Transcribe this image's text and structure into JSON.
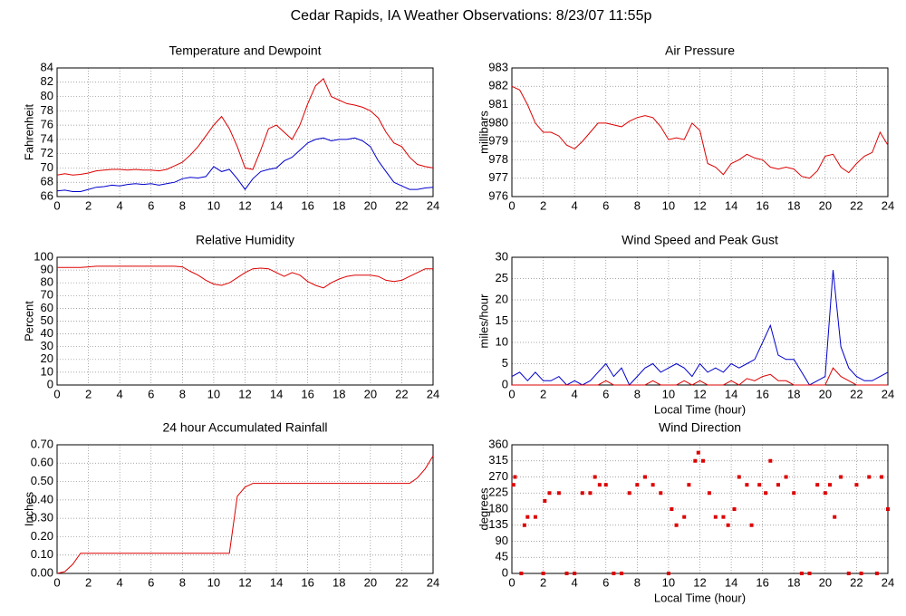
{
  "title": "Cedar Rapids, IA Weather Observations: 8/23/07 11:55p",
  "chart_data": [
    {
      "type": "line",
      "title": "Temperature and Dewpoint",
      "ylabel": "Fahrenheit",
      "x": [
        0,
        0.5,
        1,
        1.5,
        2,
        2.5,
        3,
        3.5,
        4,
        4.5,
        5,
        5.5,
        6,
        6.5,
        7,
        7.5,
        8,
        8.5,
        9,
        9.5,
        10,
        10.5,
        11,
        11.5,
        12,
        12.5,
        13,
        13.5,
        14,
        14.5,
        15,
        15.5,
        16,
        16.5,
        17,
        17.5,
        18,
        18.5,
        19,
        19.5,
        20,
        20.5,
        21,
        21.5,
        22,
        22.5,
        23,
        23.5,
        24
      ],
      "series": [
        {
          "color": "#dd0000",
          "values": [
            69,
            69.2,
            69,
            69.1,
            69.3,
            69.6,
            69.7,
            69.8,
            69.8,
            69.7,
            69.8,
            69.7,
            69.7,
            69.6,
            69.8,
            70.3,
            70.8,
            71.8,
            73,
            74.5,
            76,
            77.2,
            75.5,
            73,
            70,
            69.8,
            72.5,
            75.5,
            76,
            75,
            74,
            76,
            79,
            81.5,
            82.5,
            80,
            79.5,
            79,
            78.8,
            78.5,
            78,
            77,
            75,
            73.5,
            73,
            71.5,
            70.5,
            70.2,
            70
          ]
        },
        {
          "color": "#0000cc",
          "values": [
            66.8,
            66.9,
            66.7,
            66.7,
            67,
            67.3,
            67.4,
            67.6,
            67.5,
            67.7,
            67.8,
            67.7,
            67.8,
            67.6,
            67.8,
            68,
            68.5,
            68.7,
            68.6,
            68.8,
            70.2,
            69.5,
            69.8,
            68.5,
            67,
            68.5,
            69.5,
            69.8,
            70,
            71,
            71.5,
            72.5,
            73.5,
            74,
            74.2,
            73.8,
            74,
            74,
            74.2,
            73.8,
            73,
            71,
            69.5,
            68,
            67.5,
            67,
            67,
            67.2,
            67.3
          ]
        }
      ],
      "xlim": [
        0,
        24
      ],
      "xticks": [
        0,
        2,
        4,
        6,
        8,
        10,
        12,
        14,
        16,
        18,
        20,
        22,
        24
      ],
      "ylim": [
        66,
        84
      ],
      "yticks": [
        66,
        68,
        70,
        72,
        74,
        76,
        78,
        80,
        82,
        84
      ],
      "grid": true
    },
    {
      "type": "line",
      "title": "Air Pressure",
      "ylabel": "millibars",
      "x": [
        0,
        0.5,
        1,
        1.5,
        2,
        2.5,
        3,
        3.5,
        4,
        4.5,
        5,
        5.5,
        6,
        6.5,
        7,
        7.5,
        8,
        8.5,
        9,
        9.5,
        10,
        10.5,
        11,
        11.5,
        12,
        12.5,
        13,
        13.5,
        14,
        14.5,
        15,
        15.5,
        16,
        16.5,
        17,
        17.5,
        18,
        18.5,
        19,
        19.5,
        20,
        20.5,
        21,
        21.5,
        22,
        22.5,
        23,
        23.5,
        24
      ],
      "series": [
        {
          "color": "#dd0000",
          "values": [
            982,
            981.8,
            981,
            980,
            979.5,
            979.5,
            979.3,
            978.8,
            978.6,
            979,
            979.5,
            980,
            980,
            979.9,
            979.8,
            980.1,
            980.3,
            980.4,
            980.3,
            979.8,
            979.1,
            979.2,
            979.1,
            980,
            979.6,
            977.8,
            977.6,
            977.2,
            977.8,
            978,
            978.3,
            978.1,
            978,
            977.6,
            977.5,
            977.6,
            977.5,
            977.1,
            977,
            977.4,
            978.2,
            978.3,
            977.6,
            977.3,
            977.8,
            978.2,
            978.4,
            979.5,
            978.8
          ]
        }
      ],
      "xlim": [
        0,
        24
      ],
      "xticks": [
        0,
        2,
        4,
        6,
        8,
        10,
        12,
        14,
        16,
        18,
        20,
        22,
        24
      ],
      "ylim": [
        976,
        983
      ],
      "yticks": [
        976,
        977,
        978,
        979,
        980,
        981,
        982,
        983
      ],
      "grid": true
    },
    {
      "type": "line",
      "title": "Relative Humidity",
      "ylabel": "Percent",
      "x": [
        0,
        0.5,
        1,
        1.5,
        2,
        2.5,
        3,
        3.5,
        4,
        4.5,
        5,
        5.5,
        6,
        6.5,
        7,
        7.5,
        8,
        8.5,
        9,
        9.5,
        10,
        10.5,
        11,
        11.5,
        12,
        12.5,
        13,
        13.5,
        14,
        14.5,
        15,
        15.5,
        16,
        16.5,
        17,
        17.5,
        18,
        18.5,
        19,
        19.5,
        20,
        20.5,
        21,
        21.5,
        22,
        22.5,
        23,
        23.5,
        24
      ],
      "series": [
        {
          "color": "#dd0000",
          "values": [
            92,
            92,
            92,
            92,
            92.5,
            93,
            93,
            93,
            93,
            93,
            93,
            93,
            93,
            93,
            93,
            93,
            92.5,
            89,
            86,
            82,
            79,
            78,
            80,
            84,
            88,
            91,
            91.5,
            91,
            88,
            85,
            88,
            86,
            81,
            78,
            76,
            80,
            83,
            85,
            86,
            86,
            86,
            85,
            82,
            81,
            82,
            85,
            88,
            91,
            91
          ]
        }
      ],
      "xlim": [
        0,
        24
      ],
      "xticks": [
        0,
        2,
        4,
        6,
        8,
        10,
        12,
        14,
        16,
        18,
        20,
        22,
        24
      ],
      "ylim": [
        0,
        100
      ],
      "yticks": [
        0,
        10,
        20,
        30,
        40,
        50,
        60,
        70,
        80,
        90,
        100
      ],
      "grid": true
    },
    {
      "type": "line",
      "title": "Wind Speed and Peak Gust",
      "ylabel": "miles/hour",
      "xlabel": "Local Time (hour)",
      "x": [
        0,
        0.5,
        1,
        1.5,
        2,
        2.5,
        3,
        3.5,
        4,
        4.5,
        5,
        5.5,
        6,
        6.5,
        7,
        7.5,
        8,
        8.5,
        9,
        9.5,
        10,
        10.5,
        11,
        11.5,
        12,
        12.5,
        13,
        13.5,
        14,
        14.5,
        15,
        15.5,
        16,
        16.5,
        17,
        17.5,
        18,
        18.5,
        19,
        19.5,
        20,
        20.5,
        21,
        21.5,
        22,
        22.5,
        23,
        23.5,
        24
      ],
      "series": [
        {
          "color": "#0000cc",
          "values": [
            2,
            3,
            1,
            3,
            1,
            1,
            2,
            0,
            1,
            0,
            1,
            3,
            5,
            2,
            4,
            0,
            2,
            4,
            5,
            3,
            4,
            5,
            4,
            2,
            5,
            3,
            4,
            3,
            5,
            4,
            5,
            6,
            10,
            14,
            7,
            6,
            6,
            3,
            0,
            1,
            2,
            27,
            9,
            4,
            2,
            1,
            1,
            2,
            3
          ]
        },
        {
          "color": "#dd0000",
          "values": [
            0,
            0,
            0,
            0,
            0,
            0,
            0,
            0,
            0,
            0,
            0,
            0,
            1,
            0,
            0,
            0,
            0,
            0,
            1,
            0,
            0,
            0,
            1,
            0,
            1,
            0,
            0,
            0,
            1,
            0,
            1.5,
            1,
            2,
            2.5,
            1,
            1,
            0,
            0,
            0,
            0,
            0,
            4,
            2,
            1,
            0,
            0,
            0,
            0,
            0
          ]
        }
      ],
      "xlim": [
        0,
        24
      ],
      "xticks": [
        0,
        2,
        4,
        6,
        8,
        10,
        12,
        14,
        16,
        18,
        20,
        22,
        24
      ],
      "ylim": [
        0,
        30
      ],
      "yticks": [
        0,
        5,
        10,
        15,
        20,
        25,
        30
      ],
      "grid": true
    },
    {
      "type": "line",
      "title": "24 hour Accumulated Rainfall",
      "ylabel": "Inches",
      "x": [
        0,
        0.5,
        1,
        1.5,
        2,
        2.5,
        3,
        3.5,
        4,
        4.5,
        5,
        5.5,
        6,
        6.5,
        7,
        7.5,
        8,
        8.5,
        9,
        9.5,
        10,
        10.5,
        11,
        11.5,
        12,
        12.5,
        13,
        13.5,
        14,
        14.5,
        15,
        15.5,
        16,
        16.5,
        17,
        17.5,
        18,
        18.5,
        19,
        19.5,
        20,
        20.5,
        21,
        21.5,
        22,
        22.5,
        23,
        23.5,
        24
      ],
      "series": [
        {
          "color": "#dd0000",
          "values": [
            0,
            0.01,
            0.05,
            0.11,
            0.11,
            0.11,
            0.11,
            0.11,
            0.11,
            0.11,
            0.11,
            0.11,
            0.11,
            0.11,
            0.11,
            0.11,
            0.11,
            0.11,
            0.11,
            0.11,
            0.11,
            0.11,
            0.11,
            0.42,
            0.47,
            0.49,
            0.49,
            0.49,
            0.49,
            0.49,
            0.49,
            0.49,
            0.49,
            0.49,
            0.49,
            0.49,
            0.49,
            0.49,
            0.49,
            0.49,
            0.49,
            0.49,
            0.49,
            0.49,
            0.49,
            0.49,
            0.52,
            0.57,
            0.64
          ]
        }
      ],
      "xlim": [
        0,
        24
      ],
      "xticks": [
        0,
        2,
        4,
        6,
        8,
        10,
        12,
        14,
        16,
        18,
        20,
        22,
        24
      ],
      "ylim": [
        0,
        0.7
      ],
      "yticks": [
        {
          "value": 0,
          "label": "0.00"
        },
        {
          "value": 0.1,
          "label": "0.10"
        },
        {
          "value": 0.2,
          "label": "0.20"
        },
        {
          "value": 0.3,
          "label": "0.30"
        },
        {
          "value": 0.4,
          "label": "0.40"
        },
        {
          "value": 0.5,
          "label": "0.50"
        },
        {
          "value": 0.6,
          "label": "0.60"
        },
        {
          "value": 0.7,
          "label": "0.70"
        }
      ],
      "grid": true
    },
    {
      "type": "scatter",
      "title": "Wind Direction",
      "ylabel": "degrees",
      "xlabel": "Local Time (hour)",
      "color": "#dd0000",
      "x": [
        0.1,
        0.2,
        0.6,
        0.8,
        1,
        1.5,
        2,
        2.1,
        2.4,
        3,
        3.5,
        4,
        4.5,
        5,
        5.3,
        5.6,
        6,
        6.5,
        7,
        7.5,
        8,
        8.5,
        9,
        9.5,
        10,
        10.2,
        10.5,
        11,
        11.3,
        11.7,
        11.9,
        12.2,
        12.6,
        13,
        13.5,
        13.8,
        14.2,
        14.5,
        15,
        15.3,
        15.8,
        16.2,
        16.5,
        17,
        17.5,
        18,
        18.5,
        19,
        19.5,
        20,
        20.3,
        20.6,
        21,
        21.5,
        22,
        22.3,
        22.8,
        23.3,
        23.6,
        24
      ],
      "values": [
        248,
        270,
        0,
        135,
        158,
        158,
        0,
        203,
        225,
        225,
        0,
        0,
        225,
        225,
        270,
        248,
        248,
        0,
        0,
        225,
        248,
        270,
        248,
        225,
        0,
        180,
        135,
        158,
        248,
        315,
        338,
        315,
        225,
        158,
        158,
        135,
        180,
        270,
        248,
        135,
        248,
        225,
        315,
        248,
        270,
        225,
        0,
        0,
        248,
        225,
        248,
        158,
        270,
        0,
        248,
        0,
        270,
        0,
        270,
        180
      ],
      "xlim": [
        0,
        24
      ],
      "xticks": [
        0,
        2,
        4,
        6,
        8,
        10,
        12,
        14,
        16,
        18,
        20,
        22,
        24
      ],
      "ylim": [
        0,
        360
      ],
      "yticks": [
        0,
        45,
        90,
        135,
        180,
        225,
        270,
        315,
        360
      ],
      "grid": true
    }
  ]
}
